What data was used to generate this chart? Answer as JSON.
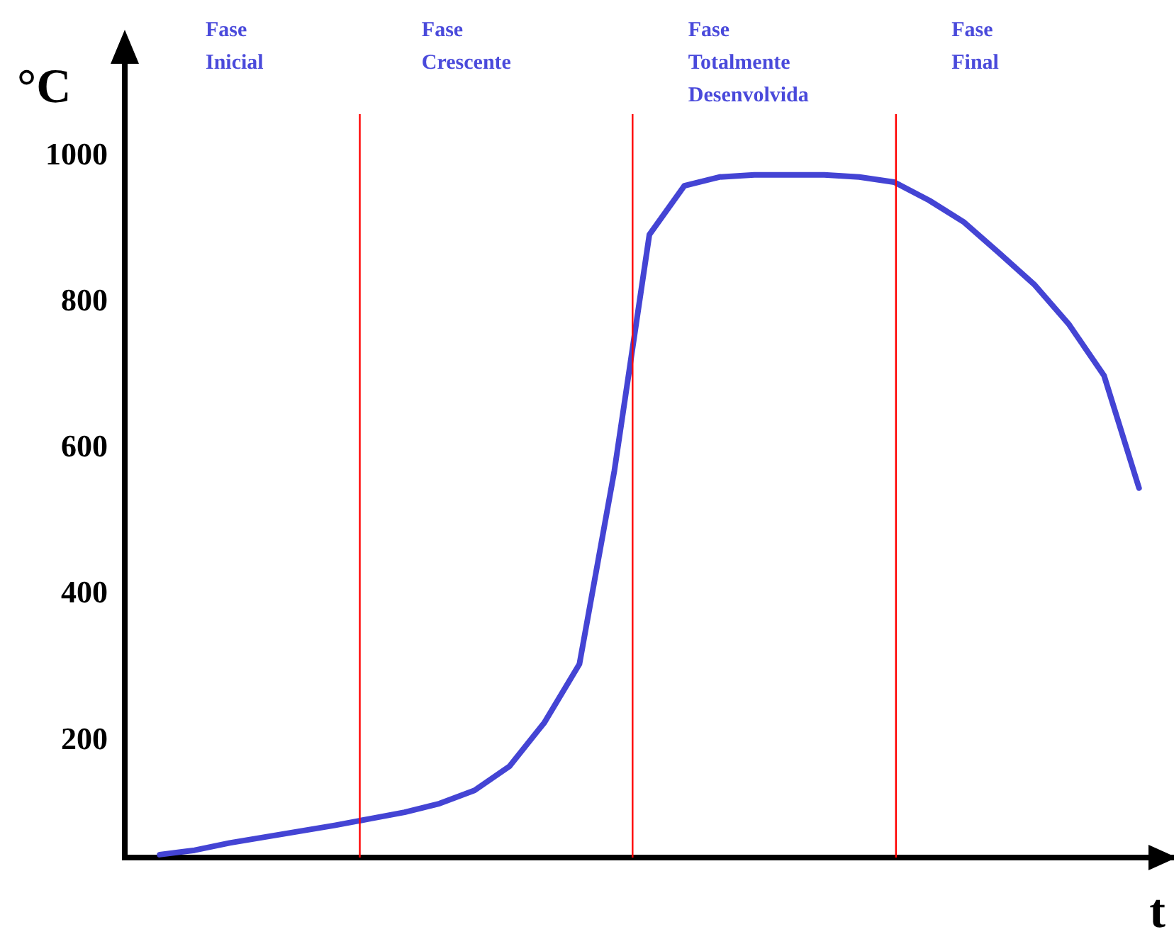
{
  "chart_data": {
    "type": "line",
    "xlabel": "t",
    "ylabel": "°C",
    "categories": [
      null,
      null,
      null,
      null,
      null,
      null,
      null,
      null,
      null,
      null,
      null,
      null,
      null,
      null,
      null,
      null,
      null,
      null,
      null,
      null,
      null,
      null,
      null,
      null,
      null,
      null,
      null,
      null,
      null,
      null,
      null
    ],
    "series": [
      {
        "color": "#4444d4",
        "values": [
          null,
          44,
          50,
          60,
          68,
          76,
          84,
          93,
          102,
          114,
          132,
          165,
          225,
          305,
          570,
          893,
          960,
          972,
          975,
          975,
          975,
          972,
          965,
          940,
          910,
          868,
          825,
          770,
          700,
          546,
          null
        ]
      }
    ],
    "ylim": [
      40,
      1150
    ],
    "yticks": [
      200,
      400,
      600,
      800,
      1000
    ],
    "tick_labels": "y",
    "grid": false,
    "legend": false,
    "marker": "none",
    "line_style": "solid",
    "annotations": [
      "Fase Inicial",
      "Fase Crescente",
      "Fase Totalmente Desenvolvida",
      "Fase Final"
    ]
  }
}
